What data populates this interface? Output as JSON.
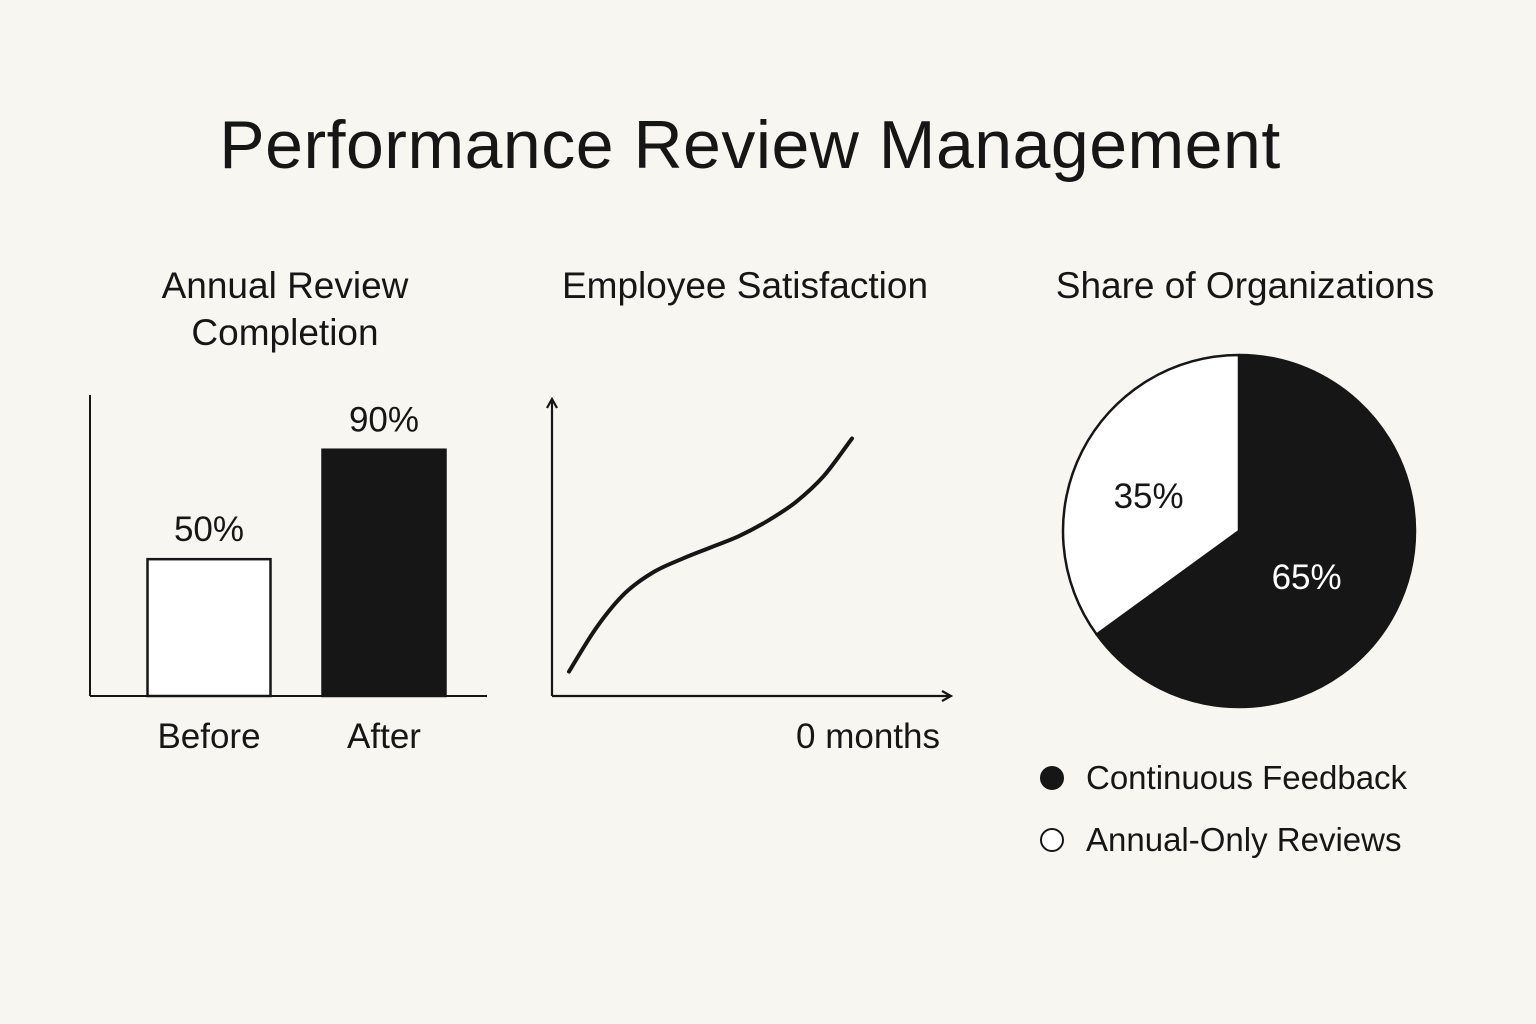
{
  "title": "Performance Review Management",
  "colors": {
    "ink": "#161616",
    "paper": "#f7f6f1"
  },
  "chart_data": [
    {
      "type": "bar",
      "title": "Annual Review Completion",
      "categories": [
        "Before",
        "After"
      ],
      "values": [
        50,
        90
      ],
      "value_labels": [
        "50%",
        "90%"
      ],
      "fills": [
        "#ffffff",
        "#161616"
      ],
      "ylim": [
        0,
        110
      ],
      "xlabel": "",
      "ylabel": ""
    },
    {
      "type": "line",
      "title": "Employee Satisfaction",
      "xlabel": "0 months",
      "ylabel": "",
      "x": [
        0,
        1,
        2,
        3,
        4,
        5,
        6,
        7,
        8,
        9,
        10
      ],
      "y": [
        0.0,
        2.4,
        4.2,
        5.3,
        6.0,
        6.6,
        7.2,
        8.0,
        9.0,
        10.4,
        12.4
      ],
      "xlim": [
        -0.6,
        13.5
      ],
      "ylim": [
        -1.3,
        14.5
      ]
    },
    {
      "type": "pie",
      "title": "Share of Organizations",
      "slices": [
        {
          "label": "Continuous Feedback",
          "value": 65,
          "value_label": "65%",
          "color": "#161616",
          "text_color": "#ffffff"
        },
        {
          "label": "Annual-Only Reviews",
          "value": 35,
          "value_label": "35%",
          "color": "#ffffff",
          "text_color": "#161616"
        }
      ],
      "start_angle_deg": 0,
      "legend": "bottom"
    }
  ]
}
